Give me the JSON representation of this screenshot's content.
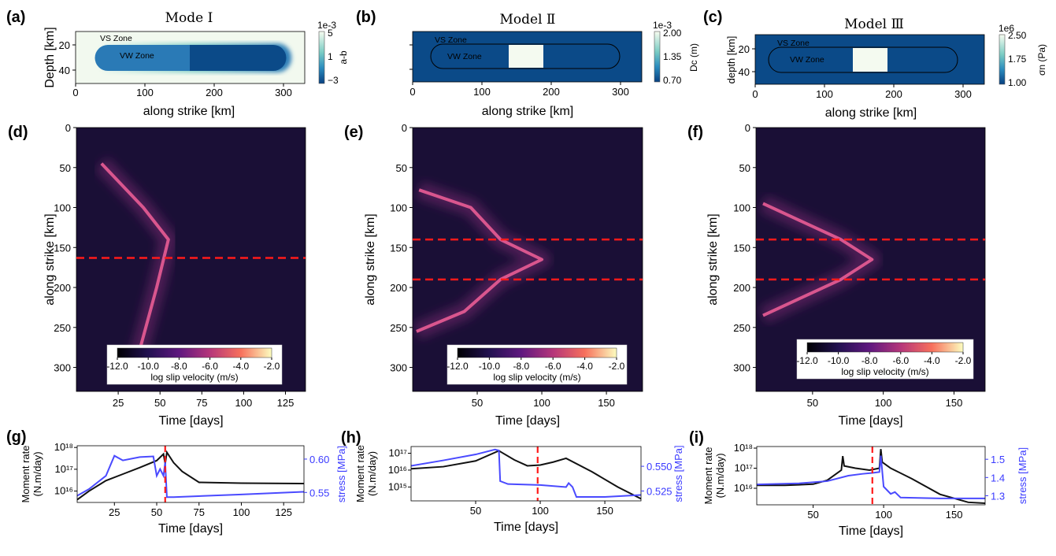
{
  "figure": {
    "panels": [
      {
        "id": "a",
        "letter": "(a)",
        "title": "Mode Ⅰ",
        "xlabel": "along strike [km]",
        "ylabel": "Depth [km]",
        "xticks": [
          "0",
          "100",
          "200",
          "300"
        ],
        "yticks": [
          "20",
          "40"
        ],
        "zones": [
          "VS Zone",
          "VW Zone"
        ],
        "cbar": {
          "exponent": "1e-3",
          "label": "a-b",
          "ticks": [
            "5",
            "1",
            "−3"
          ]
        }
      },
      {
        "id": "b",
        "letter": "(b)",
        "title": "Model Ⅱ",
        "xlabel": "along strike [km]",
        "ylabel": "",
        "xticks": [
          "0",
          "100",
          "200",
          "300"
        ],
        "yticks": [],
        "zones": [
          "VS Zone",
          "VW Zone"
        ],
        "cbar": {
          "exponent": "1e-3",
          "label": "Dc (m)",
          "ticks": [
            "2.00",
            "1.35",
            "0.70"
          ]
        }
      },
      {
        "id": "c",
        "letter": "(c)",
        "title": "Model Ⅲ",
        "xlabel": "along strike [km]",
        "ylabel": "depth [km]",
        "xticks": [
          "0",
          "100",
          "200",
          "300"
        ],
        "yticks": [
          "20",
          "40"
        ],
        "zones": [
          "VS Zone",
          "VW Zone"
        ],
        "cbar": {
          "exponent": "1e6",
          "label": "σn (Pa)",
          "ticks": [
            "2.50",
            "1.75",
            "1.00"
          ]
        }
      },
      {
        "id": "d",
        "letter": "(d)",
        "xlabel": "Time [days]",
        "ylabel": "along strike [km]",
        "xticks": [
          "25",
          "50",
          "75",
          "100",
          "125"
        ],
        "yticks": [
          "0",
          "50",
          "100",
          "150",
          "200",
          "250",
          "300"
        ],
        "cbar": {
          "ticks": [
            "-12.0",
            "-10.0",
            "-8.0",
            "-6.0",
            "-4.0",
            "-2.0"
          ],
          "label": "log slip velocity (m/s)"
        }
      },
      {
        "id": "e",
        "letter": "(e)",
        "xlabel": "Time [days]",
        "ylabel": "along strike [km]",
        "xticks": [
          "50",
          "100",
          "150"
        ],
        "yticks": [
          "0",
          "50",
          "100",
          "150",
          "200",
          "250",
          "300"
        ],
        "cbar": {
          "ticks": [
            "-12.0",
            "-10.0",
            "-8.0",
            "-6.0",
            "-4.0",
            "-2.0"
          ],
          "label": "log slip velocity (m/s)"
        }
      },
      {
        "id": "f",
        "letter": "(f)",
        "xlabel": "Time [days]",
        "ylabel": "along strike [km]",
        "xticks": [
          "50",
          "100",
          "150"
        ],
        "yticks": [
          "0",
          "50",
          "100",
          "150",
          "200",
          "250",
          "300"
        ],
        "cbar": {
          "ticks": [
            "-12.0",
            "-10.0",
            "-8.0",
            "-6.0",
            "-4.0",
            "-2.0"
          ],
          "label": "log slip velocity (m/s)"
        }
      },
      {
        "id": "g",
        "letter": "(g)",
        "xlabel": "Time [days]",
        "ylabel_left": [
          "Moment rate",
          "(N.m/day)"
        ],
        "ylabel_right": "stress [MPa]",
        "xticks": [
          "25",
          "50",
          "75",
          "100",
          "125"
        ],
        "yticks_left": [
          "10¹⁸",
          "10¹⁷",
          "10¹⁶"
        ],
        "yticks_right": [
          "0.60",
          "0.55"
        ]
      },
      {
        "id": "h",
        "letter": "(h)",
        "xlabel": "Time [days]",
        "ylabel_left": [
          "Moment rate",
          "(N.m/day)"
        ],
        "ylabel_right": "stress [MPa]",
        "xticks": [
          "50",
          "100",
          "150"
        ],
        "yticks_left": [
          "10¹⁷",
          "10¹⁶",
          "10¹⁵"
        ],
        "yticks_right": [
          "0.550",
          "0.525"
        ]
      },
      {
        "id": "i",
        "letter": "(i)",
        "xlabel": "Time [days]",
        "ylabel_left": [
          "Moment rate",
          "(N.m/day)"
        ],
        "ylabel_right": "stress [MPa]",
        "xticks": [
          "50",
          "100",
          "150"
        ],
        "yticks_left": [
          "10¹⁸",
          "10¹⁷",
          "10¹⁶"
        ],
        "yticks_right": [
          "1.5",
          "1.4",
          "1.3"
        ]
      }
    ]
  },
  "chart_data": [
    {
      "type": "heatmap",
      "panel": "a",
      "title": "Mode Ⅰ",
      "xlabel": "along strike [km]",
      "ylabel": "Depth [km]",
      "xlim": [
        0,
        330
      ],
      "ylim": [
        50,
        10
      ],
      "colorbar": {
        "label": "a-b",
        "scale": "1e-3",
        "range": [
          -3,
          5
        ]
      },
      "regions": [
        {
          "name": "VW Zone",
          "x": [
            30,
            300
          ],
          "y": [
            18,
            44
          ],
          "value_left": -2.5,
          "value_right": -3
        }
      ],
      "transition_x": 165
    },
    {
      "type": "heatmap",
      "panel": "b",
      "title": "Model Ⅱ",
      "xlabel": "along strike [km]",
      "xlim": [
        0,
        330
      ],
      "colorbar": {
        "label": "Dc (m)",
        "scale": "1e-3",
        "range": [
          0.7,
          2.0
        ]
      },
      "regions": [
        {
          "name": "VW Zone",
          "x": [
            30,
            300
          ]
        },
        {
          "name": "patch",
          "x": [
            140,
            190
          ],
          "value": 2.0
        }
      ]
    },
    {
      "type": "heatmap",
      "panel": "c",
      "title": "Model Ⅲ",
      "xlabel": "along strike [km]",
      "ylabel": "depth [km]",
      "xlim": [
        0,
        330
      ],
      "ylim": [
        50,
        10
      ],
      "colorbar": {
        "label": "σn (Pa)",
        "scale": "1e6",
        "range": [
          1.0,
          2.5
        ]
      },
      "regions": [
        {
          "name": "VW Zone",
          "x": [
            30,
            300
          ]
        },
        {
          "name": "patch",
          "x": [
            140,
            190
          ],
          "value": 2.5
        }
      ]
    },
    {
      "type": "heatmap",
      "panel": "d",
      "xlabel": "Time [days]",
      "ylabel": "along strike [km]",
      "xlim": [
        0,
        137
      ],
      "ylim": [
        330,
        0
      ],
      "colorbar": {
        "label": "log slip velocity (m/s)",
        "range": [
          -12,
          -2
        ]
      },
      "rupture_front": [
        {
          "t": 15,
          "x": 45
        },
        {
          "t": 40,
          "x": 100
        },
        {
          "t": 55,
          "x": 140
        },
        {
          "t": 48,
          "x": 200
        },
        {
          "t": 35,
          "x": 300
        }
      ],
      "hlines": [
        163
      ]
    },
    {
      "type": "heatmap",
      "panel": "e",
      "xlabel": "Time [days]",
      "ylabel": "along strike [km]",
      "xlim": [
        0,
        178
      ],
      "ylim": [
        330,
        0
      ],
      "colorbar": {
        "label": "log slip velocity (m/s)",
        "range": [
          -12,
          -2
        ]
      },
      "rupture_front": [
        {
          "t": 5,
          "x": 78
        },
        {
          "t": 45,
          "x": 100
        },
        {
          "t": 68,
          "x": 140
        },
        {
          "t": 100,
          "x": 165
        },
        {
          "t": 68,
          "x": 190
        },
        {
          "t": 40,
          "x": 230
        },
        {
          "t": 3,
          "x": 255
        }
      ],
      "hlines": [
        140,
        190
      ]
    },
    {
      "type": "heatmap",
      "panel": "f",
      "xlabel": "Time [days]",
      "ylabel": "along strike [km]",
      "xlim": [
        10,
        172
      ],
      "ylim": [
        330,
        0
      ],
      "colorbar": {
        "label": "log slip velocity (m/s)",
        "range": [
          -12,
          -2
        ]
      },
      "rupture_front": [
        {
          "t": 15,
          "x": 95
        },
        {
          "t": 70,
          "x": 140
        },
        {
          "t": 92,
          "x": 165
        },
        {
          "t": 70,
          "x": 190
        },
        {
          "t": 15,
          "x": 235
        }
      ],
      "hlines": [
        140,
        190
      ]
    },
    {
      "type": "line",
      "panel": "g",
      "xlabel": "Time [days]",
      "xlim": [
        3,
        137
      ],
      "series": [
        {
          "name": "Moment rate",
          "axis": "left",
          "color": "#111111",
          "x": [
            3,
            10,
            20,
            30,
            40,
            50,
            54,
            55,
            56,
            60,
            65,
            75,
            100,
            137
          ],
          "y": [
            4000000000000000.0,
            1e+16,
            3e+16,
            6e+16,
            1.2e+17,
            2.5e+17,
            5e+17,
            1.8e+17,
            6e+17,
            2e+17,
            8e+16,
            2.5e+16,
            2.3e+16,
            2.2e+16
          ]
        },
        {
          "name": "stress",
          "axis": "right",
          "color": "#4a4aff",
          "x": [
            3,
            10,
            20,
            25,
            30,
            40,
            48,
            50,
            52,
            54,
            55,
            56,
            60,
            80,
            100,
            137
          ],
          "y": [
            0.545,
            0.555,
            0.575,
            0.605,
            0.598,
            0.603,
            0.604,
            0.575,
            0.585,
            0.575,
            0.595,
            0.543,
            0.543,
            0.545,
            0.547,
            0.551
          ]
        }
      ],
      "ylim_left": [
        3000000000000000.0,
        1.2e+18
      ],
      "ylim_right": [
        0.535,
        0.62
      ],
      "vline": 55
    },
    {
      "type": "line",
      "panel": "h",
      "xlabel": "Time [days]",
      "xlim": [
        0,
        178
      ],
      "series": [
        {
          "name": "Moment rate",
          "axis": "left",
          "color": "#111111",
          "x": [
            0,
            25,
            50,
            68,
            80,
            90,
            100,
            110,
            120,
            140,
            160,
            178
          ],
          "y": [
            1.2e+16,
            1.6e+16,
            3.5e+16,
            1.4e+17,
            4e+16,
            1.8e+16,
            2e+16,
            3e+16,
            5e+16,
            8000000000000000.0,
            1000000000000000.0,
            200000000000000.0
          ]
        },
        {
          "name": "stress",
          "axis": "right",
          "color": "#4a4aff",
          "x": [
            0,
            25,
            50,
            65,
            68,
            69,
            75,
            100,
            120,
            122,
            125,
            128,
            150,
            178
          ],
          "y": [
            0.5505,
            0.556,
            0.562,
            0.567,
            0.566,
            0.535,
            0.532,
            0.531,
            0.529,
            0.533,
            0.529,
            0.519,
            0.519,
            0.521
          ]
        }
      ],
      "ylim_left": [
        150000000000000.0,
        2.5e+17
      ],
      "ylim_right": [
        0.515,
        0.57
      ],
      "vline": 98
    },
    {
      "type": "line",
      "panel": "i",
      "xlabel": "Time [days]",
      "xlim": [
        10,
        172
      ],
      "series": [
        {
          "name": "Moment rate",
          "axis": "left",
          "color": "#111111",
          "x": [
            10,
            30,
            50,
            60,
            70,
            71,
            72,
            80,
            90,
            97,
            98,
            99,
            105,
            120,
            140,
            160,
            172
          ],
          "y": [
            1.4e+16,
            1.4e+16,
            1.6e+16,
            2.5e+16,
            8e+16,
            4e+17,
            1.3e+17,
            1e+17,
            8e+16,
            1e+17,
            9e+17,
            2e+17,
            1e+17,
            3e+16,
            5000000000000000.0,
            2000000000000000.0,
            1800000000000000.0
          ]
        },
        {
          "name": "stress",
          "axis": "right",
          "color": "#4a4aff",
          "x": [
            10,
            40,
            60,
            75,
            85,
            92,
            97,
            98,
            100,
            105,
            108,
            112,
            140,
            172
          ],
          "y": [
            1.362,
            1.368,
            1.38,
            1.41,
            1.42,
            1.425,
            1.43,
            1.52,
            1.35,
            1.31,
            1.32,
            1.29,
            1.285,
            1.285
          ]
        }
      ],
      "ylim_left": [
        1500000000000000.0,
        1.2e+18
      ],
      "ylim_right": [
        1.25,
        1.57
      ],
      "vline": 92
    }
  ]
}
